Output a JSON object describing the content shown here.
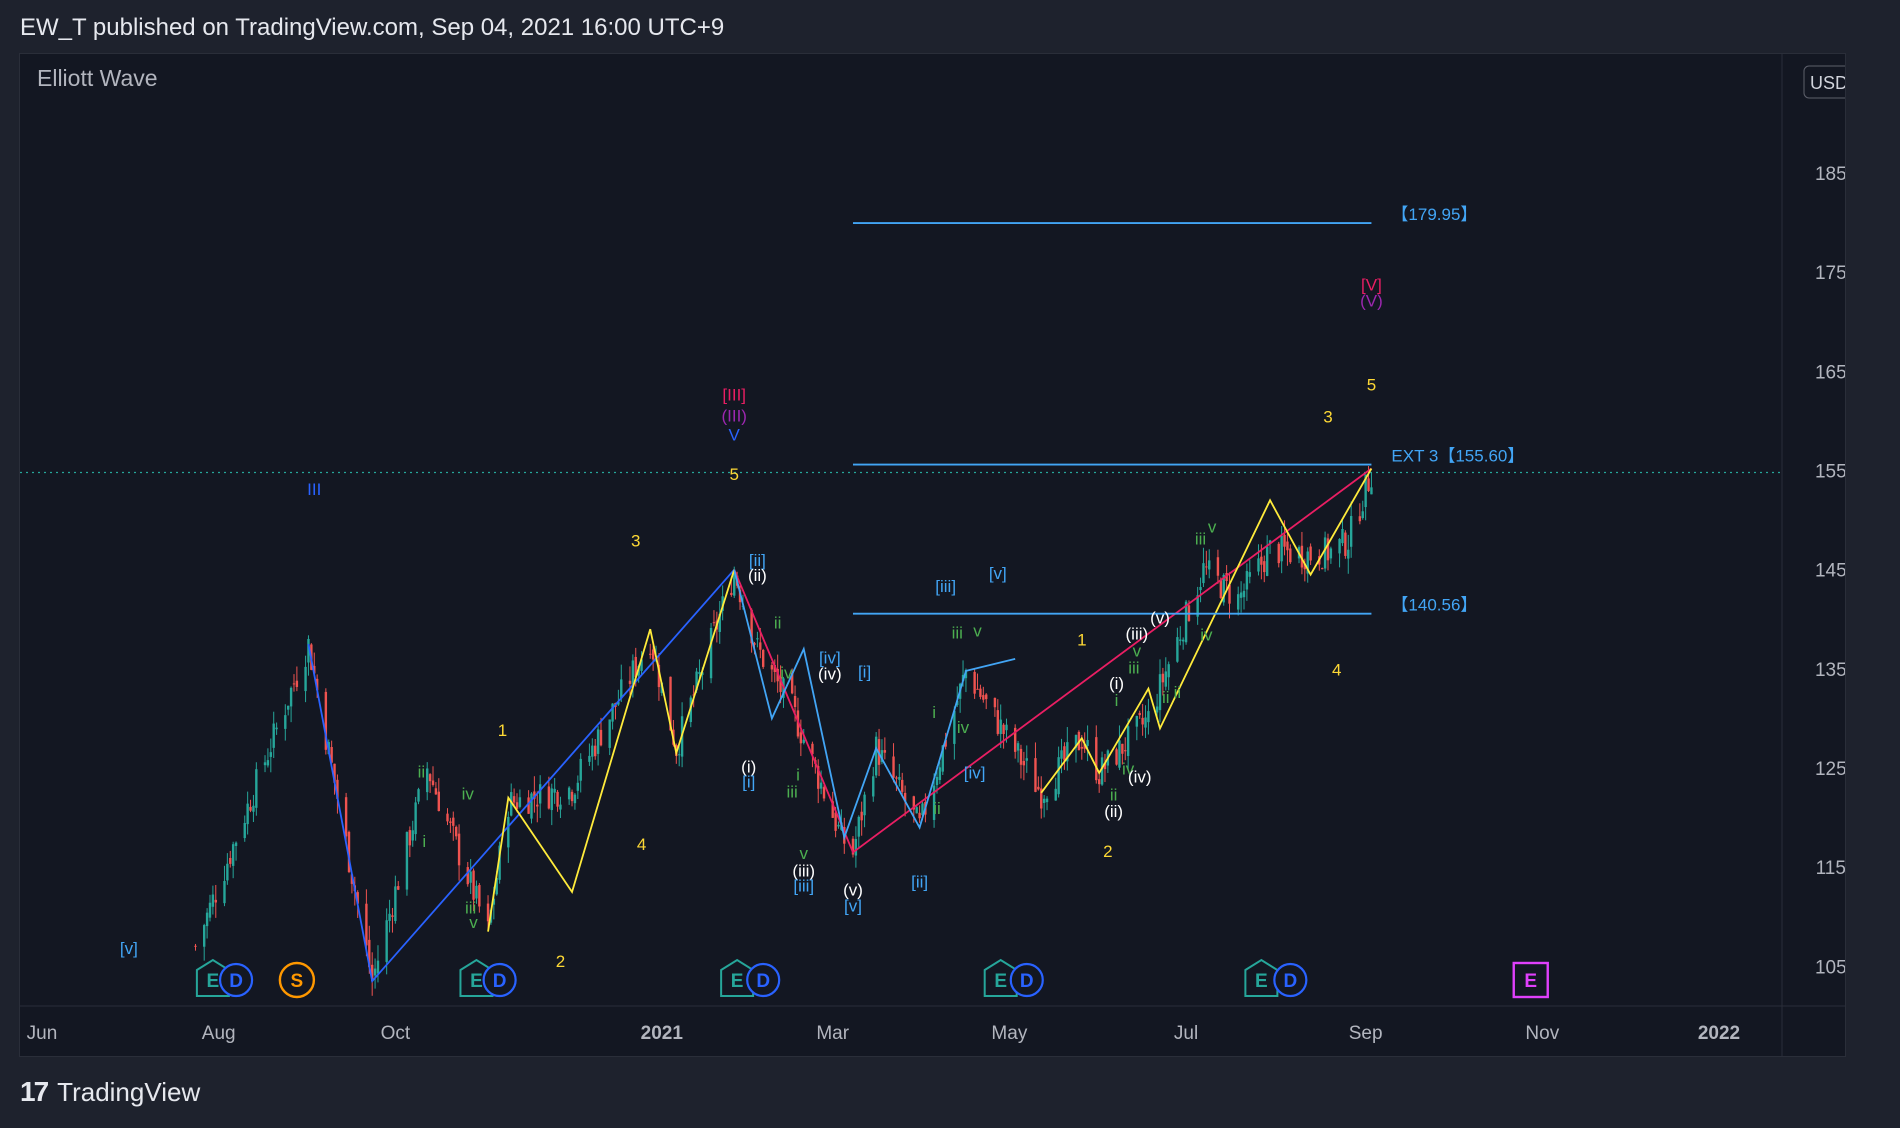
{
  "header": {
    "published": "EW_T published on TradingView.com, Sep 04, 2021 16:00 UTC+9"
  },
  "footer": {
    "logo_glyph": "17",
    "brand": "TradingView"
  },
  "colors": {
    "background": "#131722",
    "up": "#26a69a",
    "down": "#ef5350",
    "blue_zigzag": "#2962ff",
    "yellow_zigzag": "#ffeb3b",
    "pink_zigzag": "#e91e63",
    "level_line": "#42a5f5",
    "label_yellow": "#fdd835"
  },
  "chart_data": {
    "type": "candlestick",
    "title": "Elliott Wave",
    "currency": "USD",
    "ylim": [
      101,
      197
    ],
    "y_ticks": [
      105,
      115,
      125,
      135,
      145,
      155,
      165,
      175,
      185
    ],
    "y_top_partial": "195.00",
    "x_ticks": [
      {
        "label": "Jun",
        "date": "2020-06-01"
      },
      {
        "label": "Aug",
        "date": "2020-08-01"
      },
      {
        "label": "Oct",
        "date": "2020-10-01"
      },
      {
        "label": "2021",
        "date": "2021-01-01",
        "bold": true
      },
      {
        "label": "Mar",
        "date": "2021-03-01"
      },
      {
        "label": "May",
        "date": "2021-05-01"
      },
      {
        "label": "Jul",
        "date": "2021-07-01"
      },
      {
        "label": "Sep",
        "date": "2021-09-01"
      },
      {
        "label": "Nov",
        "date": "2021-11-01"
      },
      {
        "label": "2022",
        "date": "2022-01-01",
        "bold": true
      }
    ],
    "last_price": 154.8,
    "key_points": [
      {
        "date": "2020-07-24",
        "price": 107
      },
      {
        "date": "2020-09-01",
        "price": 137.5
      },
      {
        "date": "2020-09-23",
        "price": 103.5
      },
      {
        "date": "2020-10-12",
        "price": 125
      },
      {
        "date": "2020-11-02",
        "price": 108.5
      },
      {
        "date": "2020-11-09",
        "price": 121.5
      },
      {
        "date": "2020-12-01",
        "price": 123
      },
      {
        "date": "2020-12-28",
        "price": 138
      },
      {
        "date": "2021-01-06",
        "price": 127
      },
      {
        "date": "2021-01-26",
        "price": 144.8
      },
      {
        "date": "2021-02-03",
        "price": 137
      },
      {
        "date": "2021-02-15",
        "price": 131
      },
      {
        "date": "2021-03-04",
        "price": 118
      },
      {
        "date": "2021-03-08",
        "price": 116.5
      },
      {
        "date": "2021-03-16",
        "price": 127
      },
      {
        "date": "2021-03-31",
        "price": 119
      },
      {
        "date": "2021-04-16",
        "price": 134.8
      },
      {
        "date": "2021-05-12",
        "price": 122.5
      },
      {
        "date": "2021-05-26",
        "price": 128
      },
      {
        "date": "2021-06-01",
        "price": 124.5
      },
      {
        "date": "2021-06-18",
        "price": 130
      },
      {
        "date": "2021-07-07",
        "price": 145
      },
      {
        "date": "2021-07-19",
        "price": 142
      },
      {
        "date": "2021-07-30",
        "price": 147
      },
      {
        "date": "2021-08-13",
        "price": 146.5
      },
      {
        "date": "2021-08-20",
        "price": 146.8
      },
      {
        "date": "2021-08-26",
        "price": 148
      },
      {
        "date": "2021-09-03",
        "price": 154.8
      }
    ],
    "zigzags": [
      {
        "color": "#2962ff",
        "points": [
          [
            "2020-09-01",
            137.5
          ],
          [
            "2020-09-23",
            103.5
          ],
          [
            "2021-01-26",
            145
          ]
        ]
      },
      {
        "color": "#ffeb3b",
        "points": [
          [
            "2020-11-02",
            108.5
          ],
          [
            "2020-11-09",
            122
          ],
          [
            "2020-12-01",
            112.5
          ],
          [
            "2020-12-28",
            139
          ],
          [
            "2021-01-06",
            126.5
          ],
          [
            "2021-01-26",
            145
          ]
        ]
      },
      {
        "color": "#e91e63",
        "points": [
          [
            "2021-01-26",
            145
          ],
          [
            "2021-03-08",
            116.5
          ],
          [
            "2021-09-03",
            155.2
          ]
        ]
      },
      {
        "color": "#42a5f5",
        "points": [
          [
            "2021-01-26",
            145
          ],
          [
            "2021-02-08",
            130
          ],
          [
            "2021-02-19",
            137
          ],
          [
            "2021-03-05",
            118
          ],
          [
            "2021-03-16",
            127
          ],
          [
            "2021-03-31",
            119
          ],
          [
            "2021-04-16",
            134.8
          ],
          [
            "2021-05-03",
            136
          ]
        ]
      },
      {
        "color": "#ffeb3b",
        "points": [
          [
            "2021-05-12",
            122.5
          ],
          [
            "2021-05-26",
            128
          ],
          [
            "2021-06-01",
            124.5
          ],
          [
            "2021-06-18",
            133
          ],
          [
            "2021-06-22",
            129
          ],
          [
            "2021-07-30",
            152
          ],
          [
            "2021-08-13",
            144.5
          ],
          [
            "2021-09-03",
            155.2
          ]
        ]
      }
    ],
    "levels": [
      {
        "value": 179.95,
        "label": "【179.95】",
        "from": "2021-03-08",
        "to": "2021-09-03"
      },
      {
        "value": 155.6,
        "label": "EXT 3【155.60】",
        "from": "2021-03-08",
        "to": "2021-09-03"
      },
      {
        "value": 140.56,
        "label": "【140.56】",
        "from": "2021-03-08",
        "to": "2021-09-03"
      }
    ],
    "wave_labels": [
      {
        "text": "III",
        "date": "2020-09-03",
        "price": 153,
        "color": "#2962ff"
      },
      {
        "text": "[v]",
        "date": "2020-07-01",
        "price": 106.7,
        "color": "#42a5f5"
      },
      {
        "text": "1",
        "date": "2020-11-07",
        "price": 128.7,
        "color": "#fdd835"
      },
      {
        "text": "3",
        "date": "2020-12-23",
        "price": 147.8,
        "color": "#fdd835"
      },
      {
        "text": "4",
        "date": "2020-12-25",
        "price": 117.2,
        "color": "#fdd835"
      },
      {
        "text": "5",
        "date": "2021-01-26",
        "price": 154.5,
        "color": "#fdd835"
      },
      {
        "text": "2",
        "date": "2020-11-27",
        "price": 105.4,
        "color": "#fdd835"
      },
      {
        "text": "[III]",
        "date": "2021-01-26",
        "price": 162.5,
        "color": "#e91e63"
      },
      {
        "text": "(III)",
        "date": "2021-01-26",
        "price": 160.4,
        "color": "#9c27b0"
      },
      {
        "text": "V",
        "date": "2021-01-26",
        "price": 158.5,
        "color": "#2962ff"
      },
      {
        "text": "ii",
        "date": "2020-10-10",
        "price": 124.5,
        "color": "#4caf50"
      },
      {
        "text": "iv",
        "date": "2020-10-26",
        "price": 122.3,
        "color": "#4caf50"
      },
      {
        "text": "i",
        "date": "2020-10-11",
        "price": 117.5,
        "color": "#4caf50"
      },
      {
        "text": "iii",
        "date": "2020-10-27",
        "price": 110.8,
        "color": "#4caf50"
      },
      {
        "text": "v",
        "date": "2020-10-28",
        "price": 109.3,
        "color": "#4caf50"
      },
      {
        "text": "[ii]",
        "date": "2021-02-03",
        "price": 145.8,
        "color": "#42a5f5"
      },
      {
        "text": "(ii)",
        "date": "2021-02-03",
        "price": 144.3,
        "color": "#ffffff"
      },
      {
        "text": "ii",
        "date": "2021-02-10",
        "price": 139.5,
        "color": "#4caf50"
      },
      {
        "text": "iv",
        "date": "2021-02-13",
        "price": 134.5,
        "color": "#4caf50"
      },
      {
        "text": "[iv]",
        "date": "2021-02-28",
        "price": 136,
        "color": "#42a5f5"
      },
      {
        "text": "(iv)",
        "date": "2021-02-28",
        "price": 134.4,
        "color": "#ffffff"
      },
      {
        "text": "[i]",
        "date": "2021-03-12",
        "price": 134.6,
        "color": "#42a5f5"
      },
      {
        "text": "(i)",
        "date": "2021-01-31",
        "price": 125,
        "color": "#ffffff"
      },
      {
        "text": "[i]",
        "date": "2021-01-31",
        "price": 123.5,
        "color": "#42a5f5"
      },
      {
        "text": "i",
        "date": "2021-02-17",
        "price": 124.2,
        "color": "#4caf50"
      },
      {
        "text": "iii",
        "date": "2021-02-15",
        "price": 122.5,
        "color": "#4caf50"
      },
      {
        "text": "v",
        "date": "2021-02-19",
        "price": 116.3,
        "color": "#4caf50"
      },
      {
        "text": "(iii)",
        "date": "2021-02-19",
        "price": 114.5,
        "color": "#ffffff"
      },
      {
        "text": "[iii]",
        "date": "2021-02-19",
        "price": 113,
        "color": "#42a5f5"
      },
      {
        "text": "(v)",
        "date": "2021-03-08",
        "price": 112.6,
        "color": "#ffffff"
      },
      {
        "text": "[v]",
        "date": "2021-03-08",
        "price": 111,
        "color": "#42a5f5"
      },
      {
        "text": "[ii]",
        "date": "2021-03-31",
        "price": 113.4,
        "color": "#42a5f5"
      },
      {
        "text": "[iii]",
        "date": "2021-04-09",
        "price": 143.2,
        "color": "#42a5f5"
      },
      {
        "text": "[v]",
        "date": "2021-04-27",
        "price": 144.5,
        "color": "#42a5f5"
      },
      {
        "text": "[iv]",
        "date": "2021-04-19",
        "price": 124.4,
        "color": "#42a5f5"
      },
      {
        "text": "iii",
        "date": "2021-04-13",
        "price": 138.5,
        "color": "#4caf50"
      },
      {
        "text": "v",
        "date": "2021-04-20",
        "price": 138.7,
        "color": "#4caf50"
      },
      {
        "text": "i",
        "date": "2021-04-05",
        "price": 130.5,
        "color": "#4caf50"
      },
      {
        "text": "iv",
        "date": "2021-04-15",
        "price": 129,
        "color": "#4caf50"
      },
      {
        "text": "ii",
        "date": "2021-04-06",
        "price": 120.8,
        "color": "#4caf50"
      },
      {
        "text": "1",
        "date": "2021-05-26",
        "price": 137.8,
        "color": "#fdd835"
      },
      {
        "text": "2",
        "date": "2021-06-04",
        "price": 116.5,
        "color": "#fdd835"
      },
      {
        "text": "3",
        "date": "2021-08-19",
        "price": 160.3,
        "color": "#fdd835"
      },
      {
        "text": "4",
        "date": "2021-08-22",
        "price": 134.8,
        "color": "#fdd835"
      },
      {
        "text": "5",
        "date": "2021-09-03",
        "price": 163.5,
        "color": "#fdd835"
      },
      {
        "text": "[V]",
        "date": "2021-09-03",
        "price": 173.6,
        "color": "#e91e63"
      },
      {
        "text": "(V)",
        "date": "2021-09-03",
        "price": 172,
        "color": "#9c27b0"
      },
      {
        "text": "(i)",
        "date": "2021-06-07",
        "price": 133.4,
        "color": "#ffffff"
      },
      {
        "text": "i",
        "date": "2021-06-07",
        "price": 131.7,
        "color": "#4caf50"
      },
      {
        "text": "(iii)",
        "date": "2021-06-14",
        "price": 138.4,
        "color": "#ffffff"
      },
      {
        "text": "v",
        "date": "2021-06-14",
        "price": 136.7,
        "color": "#4caf50"
      },
      {
        "text": "iii",
        "date": "2021-06-13",
        "price": 135,
        "color": "#4caf50"
      },
      {
        "text": "ii",
        "date": "2021-06-24",
        "price": 132,
        "color": "#4caf50"
      },
      {
        "text": "(v)",
        "date": "2021-06-22",
        "price": 140,
        "color": "#ffffff"
      },
      {
        "text": "iv",
        "date": "2021-06-11",
        "price": 124.8,
        "color": "#4caf50"
      },
      {
        "text": "(iv)",
        "date": "2021-06-15",
        "price": 124,
        "color": "#ffffff"
      },
      {
        "text": "ii",
        "date": "2021-06-06",
        "price": 122.2,
        "color": "#4caf50"
      },
      {
        "text": "(ii)",
        "date": "2021-06-06",
        "price": 120.5,
        "color": "#ffffff"
      },
      {
        "text": "iii",
        "date": "2021-07-06",
        "price": 148,
        "color": "#4caf50"
      },
      {
        "text": "v",
        "date": "2021-07-10",
        "price": 149.2,
        "color": "#4caf50"
      },
      {
        "text": "iv",
        "date": "2021-07-08",
        "price": 138.3,
        "color": "#4caf50"
      },
      {
        "text": "ii",
        "date": "2021-06-28",
        "price": 132.5,
        "color": "#4caf50"
      }
    ],
    "event_markers": [
      {
        "text": "E",
        "type": "earnings",
        "date": "2020-07-30"
      },
      {
        "text": "D",
        "type": "dividend",
        "date": "2020-08-07"
      },
      {
        "text": "S",
        "type": "split",
        "date": "2020-08-28"
      },
      {
        "text": "E",
        "type": "earnings",
        "date": "2020-10-29"
      },
      {
        "text": "D",
        "type": "dividend",
        "date": "2020-11-06"
      },
      {
        "text": "E",
        "type": "earnings",
        "date": "2021-01-27"
      },
      {
        "text": "D",
        "type": "dividend",
        "date": "2021-02-05"
      },
      {
        "text": "E",
        "type": "earnings",
        "date": "2021-04-28"
      },
      {
        "text": "D",
        "type": "dividend",
        "date": "2021-05-07"
      },
      {
        "text": "E",
        "type": "earnings",
        "date": "2021-07-27"
      },
      {
        "text": "D",
        "type": "dividend",
        "date": "2021-08-06"
      },
      {
        "text": "E",
        "type": "earnings-upcoming",
        "date": "2021-10-28"
      }
    ]
  }
}
